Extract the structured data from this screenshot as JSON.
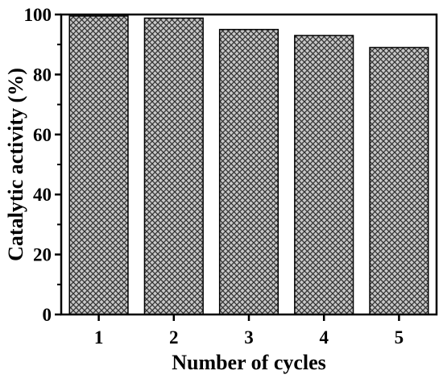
{
  "chart_data": {
    "type": "bar",
    "categories": [
      "1",
      "2",
      "3",
      "4",
      "5"
    ],
    "values": [
      99.5,
      98.8,
      95.0,
      93.0,
      89.0
    ],
    "title": "",
    "xlabel": "Number of cycles",
    "ylabel": "Catalytic activity (%)",
    "ylim": [
      0,
      100
    ],
    "yticks": [
      "0",
      "20",
      "40",
      "60",
      "80",
      "100"
    ],
    "grid": false,
    "legend": "none",
    "bar_fill": "crosshatch",
    "colors": {
      "bar_background": "#c8c8c8",
      "hatch": "#333333",
      "axis": "#000000"
    }
  }
}
